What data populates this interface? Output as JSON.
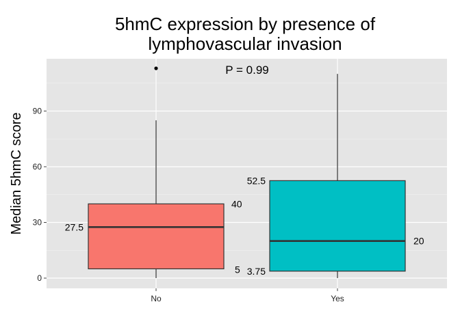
{
  "chart_data": {
    "type": "box",
    "title": [
      "5hmC expression by presence of",
      "lymphovascular invasion"
    ],
    "xlabel": "",
    "ylabel": "Median 5hmC score",
    "ylim": [
      -4,
      120
    ],
    "yticks": [
      0,
      30,
      60,
      90
    ],
    "categories": [
      "No",
      "Yes"
    ],
    "boxes": [
      {
        "category": "No",
        "whisker_low": 0,
        "q1": 5,
        "median": 27.5,
        "q3": 40,
        "whisker_high": 85,
        "outliers": [
          113
        ],
        "color": "#F8766D",
        "labels": {
          "q1": "5",
          "median": "27.5",
          "q3": "40"
        }
      },
      {
        "category": "Yes",
        "whisker_low": 0,
        "q1": 3.75,
        "median": 20,
        "q3": 52.5,
        "whisker_high": 110,
        "outliers": [],
        "color": "#00BFC4",
        "labels": {
          "q1": "3.75",
          "median": "20",
          "q3": "52.5"
        }
      }
    ],
    "annotation": "P = 0.99",
    "panel_background": "#E5E5E5",
    "grid": true,
    "legend": "none"
  }
}
